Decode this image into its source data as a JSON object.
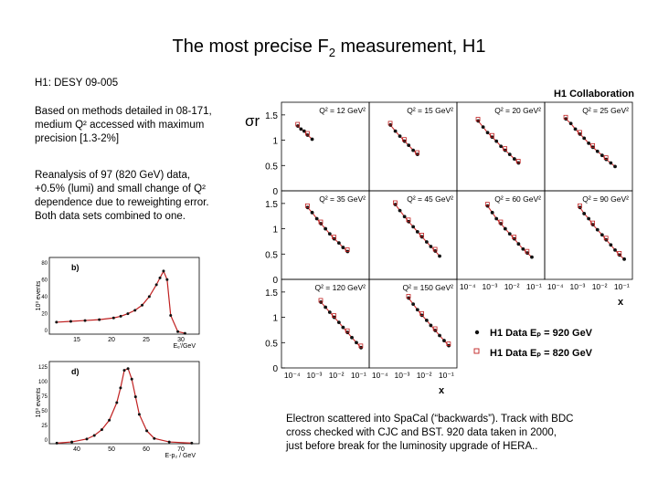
{
  "title": {
    "main": "The most precise F",
    "sub": "2",
    "rest": " measurement, H1"
  },
  "ref": "H1: DESY 09-005",
  "para1": [
    "Based on methods detailed in 08-171,",
    "medium Q² accessed with maximum",
    "precision [1.3-2%]"
  ],
  "para2": [
    "Reanalysis of 97 (820 GeV) data,",
    "+0.5% (lumi) and small change of Q²",
    "dependence due to reweighting error.",
    "Both data sets combined to one."
  ],
  "caption": [
    "Electron scattered into SpaCal (“backwards”). Track with BDC",
    "cross checked with CJC and BST. 920 data taken in 2000,",
    "just before break for the luminosity upgrade of HERA.."
  ],
  "chart_data": [
    {
      "type": "scatter",
      "title": "H1 Collaboration",
      "ylabel": "σr",
      "xlabel": "x",
      "ylim": [
        0,
        1.75
      ],
      "yticks": [
        "0",
        "0.5",
        "1",
        "1.5"
      ],
      "xticks": [
        "10⁻⁴",
        "10⁻³",
        "10⁻²",
        "10⁻¹"
      ],
      "panels": [
        {
          "label": "Q² = 12 GeV²",
          "x": [
            0.00018,
            0.00025,
            0.00035,
            0.0005,
            0.0008
          ],
          "y": [
            1.28,
            1.22,
            1.18,
            1.1,
            1.02
          ]
        },
        {
          "label": "Q² = 15 GeV²",
          "x": [
            0.0003,
            0.0005,
            0.0008,
            0.0013,
            0.002,
            0.0032,
            0.005
          ],
          "y": [
            1.3,
            1.18,
            1.08,
            0.98,
            0.9,
            0.8,
            0.72
          ]
        },
        {
          "label": "Q² = 20 GeV²",
          "x": [
            0.0003,
            0.0005,
            0.0008,
            0.0013,
            0.002,
            0.0032,
            0.005,
            0.008,
            0.013,
            0.02
          ],
          "y": [
            1.38,
            1.26,
            1.15,
            1.06,
            0.98,
            0.88,
            0.8,
            0.72,
            0.63,
            0.55
          ]
        },
        {
          "label": "Q² = 25 GeV²",
          "x": [
            0.0003,
            0.0005,
            0.0008,
            0.0013,
            0.002,
            0.0032,
            0.005,
            0.008,
            0.013,
            0.02,
            0.032,
            0.05
          ],
          "y": [
            1.42,
            1.33,
            1.22,
            1.12,
            1.04,
            0.94,
            0.86,
            0.78,
            0.7,
            0.62,
            0.55,
            0.48
          ]
        },
        {
          "label": "Q² = 35 GeV²",
          "x": [
            0.0005,
            0.0008,
            0.0013,
            0.002,
            0.0032,
            0.005,
            0.008,
            0.013,
            0.02,
            0.032
          ],
          "y": [
            1.42,
            1.32,
            1.2,
            1.1,
            1.0,
            0.9,
            0.8,
            0.72,
            0.63,
            0.55
          ]
        },
        {
          "label": "Q² = 45 GeV²",
          "x": [
            0.0005,
            0.0008,
            0.0013,
            0.002,
            0.0032,
            0.005,
            0.008,
            0.013,
            0.02,
            0.032,
            0.05
          ],
          "y": [
            1.48,
            1.36,
            1.24,
            1.14,
            1.04,
            0.94,
            0.84,
            0.74,
            0.65,
            0.56,
            0.46
          ]
        },
        {
          "label": "Q² = 60 GeV²",
          "x": [
            0.0008,
            0.0013,
            0.002,
            0.0032,
            0.005,
            0.008,
            0.013,
            0.02,
            0.032,
            0.05,
            0.08
          ],
          "y": [
            1.45,
            1.32,
            1.2,
            1.1,
            1.0,
            0.9,
            0.8,
            0.7,
            0.6,
            0.52,
            0.44
          ]
        },
        {
          "label": "Q² = 90 GeV²",
          "x": [
            0.0013,
            0.002,
            0.0032,
            0.005,
            0.008,
            0.013,
            0.02,
            0.032,
            0.05,
            0.08,
            0.13
          ],
          "y": [
            1.42,
            1.3,
            1.2,
            1.08,
            0.98,
            0.88,
            0.78,
            0.68,
            0.58,
            0.48,
            0.4
          ]
        },
        {
          "label": "Q² = 120 GeV²",
          "x": [
            0.002,
            0.0032,
            0.005,
            0.008,
            0.013,
            0.02,
            0.032,
            0.05,
            0.08,
            0.13
          ],
          "y": [
            1.3,
            1.2,
            1.1,
            1.0,
            0.9,
            0.8,
            0.7,
            0.6,
            0.5,
            0.4
          ]
        },
        {
          "label": "Q² = 150 GeV²",
          "x": [
            0.002,
            0.0032,
            0.005,
            0.008,
            0.013,
            0.02,
            0.032,
            0.05,
            0.08,
            0.13
          ],
          "y": [
            1.38,
            1.26,
            1.15,
            1.04,
            0.94,
            0.84,
            0.74,
            0.64,
            0.54,
            0.44
          ]
        }
      ],
      "legend": [
        "H1 Data Eₚ = 920 GeV",
        "H1 Data Eₚ = 820 GeV"
      ]
    },
    {
      "type": "histogram",
      "panel": "b)",
      "ylabel": "10³ events",
      "xlabel": "Eₑ'/GeV",
      "yticks": [
        "0",
        "20",
        "40",
        "60",
        "80"
      ],
      "xticks": [
        "15",
        "20",
        "25",
        "30"
      ],
      "x": [
        12,
        14,
        16,
        18,
        20,
        21,
        22,
        23,
        24,
        25,
        26,
        26.5,
        27,
        27.5,
        28,
        29,
        30
      ],
      "y": [
        14,
        15,
        16,
        17,
        19,
        21,
        24,
        28,
        34,
        44,
        58,
        66,
        74,
        64,
        22,
        3,
        1
      ]
    },
    {
      "type": "histogram",
      "panel": "d)",
      "ylabel": "10³ events",
      "xlabel": "E-p₂ / GeV",
      "yticks": [
        "0",
        "25",
        "50",
        "75",
        "100",
        "125"
      ],
      "xticks": [
        "40",
        "50",
        "60",
        "70"
      ],
      "x": [
        36,
        40,
        44,
        46,
        48,
        50,
        52,
        53,
        54,
        55,
        56,
        57,
        58,
        60,
        62,
        66,
        72
      ],
      "y": [
        1,
        3,
        8,
        14,
        24,
        40,
        70,
        95,
        125,
        128,
        110,
        80,
        50,
        22,
        9,
        3,
        1
      ]
    }
  ]
}
